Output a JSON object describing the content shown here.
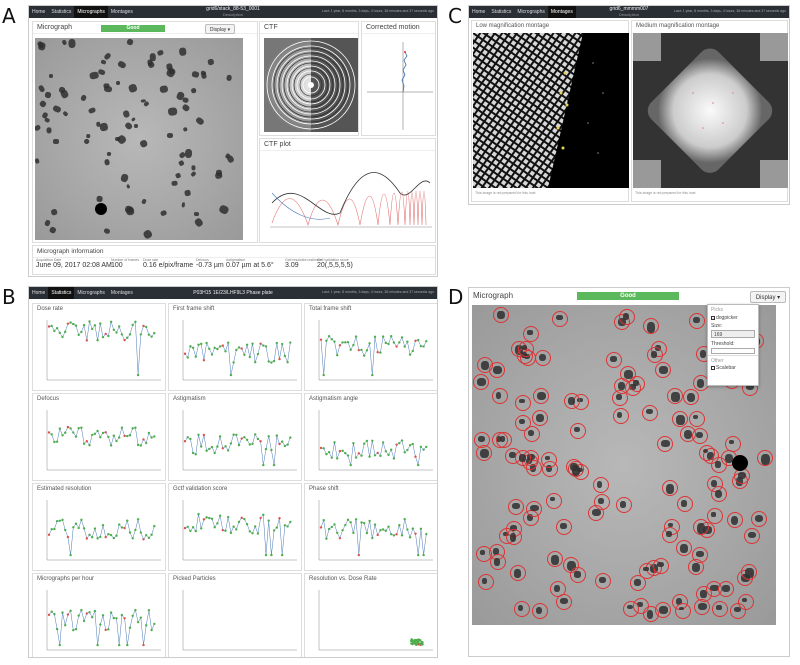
{
  "figure_labels": {
    "a": "A",
    "b": "B",
    "c": "C",
    "d": "D"
  },
  "panel_a": {
    "nav": {
      "tabs": [
        "Home",
        "Statistics",
        "Micrographs",
        "Montages"
      ],
      "active": 2,
      "title": "grid6/stack_88-53_0001",
      "subtitle": "Description",
      "status": "Last: 1 year, 8 months, 3 days, 4 hours, 36 minutes and 37 seconds ago"
    },
    "micrograph_title": "Micrograph",
    "quality": "Good",
    "display_btn": "Display ▾",
    "ctf_title": "CTF",
    "motion_title": "Corrected motion",
    "ctfplot_title": "CTF plot",
    "info_title": "Micrograph information",
    "info": [
      {
        "k": "Acquisition Date",
        "v": "June 09, 2017 02:08 AM"
      },
      {
        "k": "Number of frames",
        "v": "100"
      },
      {
        "k": "Dose rate",
        "v": "0.16 e/pix/frame"
      },
      {
        "k": "Defocus",
        "v": "-0.73 µm"
      },
      {
        "k": "Astigmatism",
        "v": "0.07 µm at 5.6°"
      },
      {
        "k": "Gctf resolution estimate",
        "v": "3.09"
      },
      {
        "k": "Gctf validation score",
        "v": "20(,5,5,5,5)"
      }
    ]
  },
  "panel_b": {
    "nav": {
      "tabs": [
        "Home",
        "Statistics",
        "Micrographs",
        "Montages"
      ],
      "active": 1,
      "title": "P03H15 1E/23/LHF9L3 Phase plate",
      "status": "Last: 1 year, 8 months, 3 days, 4 hours, 36 minutes and 37 seconds ago"
    },
    "plots": [
      "Dose rate",
      "First frame shift",
      "Total frame shift",
      "Defocus",
      "Astigmatism",
      "Astigmatism angle",
      "Estimated resolution",
      "Gctf validation score",
      "Phase shift",
      "Micrographs per hour",
      "Picked Particles",
      "Resolution vs. Dose Rate"
    ]
  },
  "panel_c": {
    "nav": {
      "tabs": [
        "Home",
        "Statistics",
        "Micrographs",
        "Montages"
      ],
      "active": 3,
      "title": "grid6_mmmm007",
      "subtitle": "Description",
      "status": "Last: 1 year, 8 months, 3 days, 4 hours, 36 minutes and 37 seconds ago"
    },
    "low_title": "Low magnification montage",
    "med_title": "Medium magnification montage",
    "low_caption": "This image is not prepared for this host",
    "med_caption": "This image is not prepared for this host"
  },
  "panel_d": {
    "micrograph_title": "Micrograph",
    "quality": "Good",
    "display_btn": "Display ▾",
    "dropdown": {
      "picks_header": "Picks",
      "dogpicker_label": "dogpicker",
      "size_label": "Size:",
      "size_value": "169",
      "threshold_label": "Threshold:",
      "threshold_value": "",
      "other_header": "Other",
      "scalebar_label": "Scalebar"
    }
  },
  "colors": {
    "good": "#5cb85c",
    "nav": "#2a2f36",
    "green": "#4cae4c",
    "red": "#d9534f",
    "blue": "#4a7bb7"
  }
}
